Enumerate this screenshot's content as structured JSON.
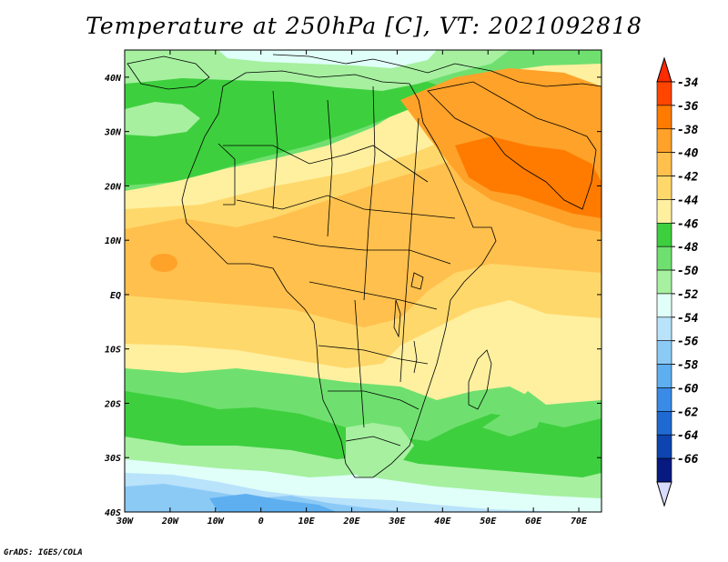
{
  "title": "Temperature at 250hPa [C], VT: 2021092818",
  "credit": "GrADS: IGES/COLA",
  "map": {
    "lat_labels": [
      "40N",
      "30N",
      "20N",
      "10N",
      "EQ",
      "10S",
      "20S",
      "30S",
      "40S"
    ],
    "lon_labels": [
      "30W",
      "20W",
      "10W",
      "0",
      "10E",
      "20E",
      "30E",
      "40E",
      "50E",
      "60E",
      "70E"
    ],
    "lat_range": [
      -40,
      45
    ],
    "lon_range": [
      -30,
      75
    ]
  },
  "colorbar": {
    "labels": [
      "-34",
      "-36",
      "-38",
      "-40",
      "-42",
      "-44",
      "-46",
      "-48",
      "-50",
      "-52",
      "-54",
      "-56",
      "-58",
      "-60",
      "-62",
      "-64",
      "-66"
    ],
    "colors": [
      "#ff4500",
      "#ff7b00",
      "#ffa229",
      "#ffc04d",
      "#ffd86b",
      "#fff0a0",
      "#3ecf3e",
      "#6fe06f",
      "#a6f0a0",
      "#e0fff8",
      "#b9e2fb",
      "#8ccaf6",
      "#5eaff0",
      "#3a8be6",
      "#1f6ad2",
      "#0d44b0",
      "#061a80"
    ],
    "top_arrow_color": "#ff2a00",
    "bottom_arrow_color": "#d8dcff"
  },
  "colors": {
    "ocean_base": "#fff0a0",
    "warm": "#ffd86b",
    "warmer": "#ffc04d",
    "hot": "#ffa229",
    "hottest": "#ff7b00",
    "green_dark": "#3ecf3e",
    "green": "#6fe06f",
    "green_light": "#a6f0a0",
    "cyan_light": "#e0fff8",
    "blue_light": "#b9e2fb",
    "blue": "#8ccaf6",
    "blue_mid": "#5eaff0",
    "border": "#000000"
  }
}
